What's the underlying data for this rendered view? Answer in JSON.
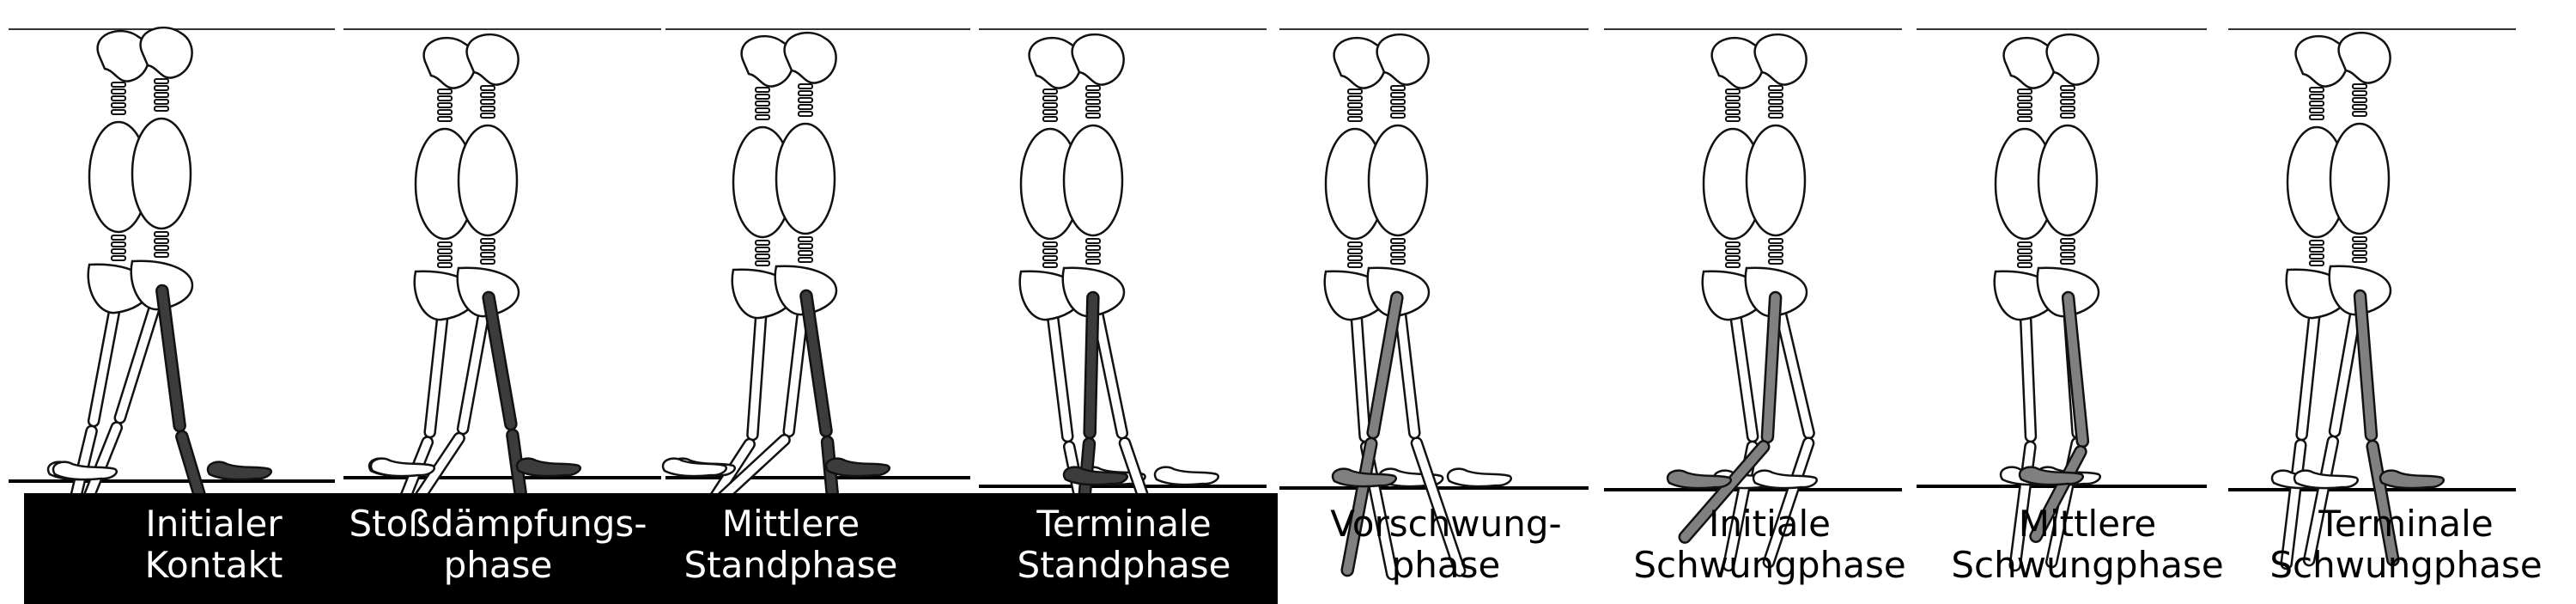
{
  "figure": {
    "stance_group_label": "",
    "phases": [
      {
        "line1": "Initialer",
        "line2": "Kontakt"
      },
      {
        "line1": "Stoßdämpfungs-",
        "line2": "phase"
      },
      {
        "line1": "Mittlere",
        "line2": "Standphase"
      },
      {
        "line1": "Terminale",
        "line2": "Standphase"
      },
      {
        "line1": "Vorschwung-",
        "line2": "phase"
      },
      {
        "line1": "Initiale",
        "line2": "Schwungphase"
      },
      {
        "line1": "Mittlere",
        "line2": "Schwungphase"
      },
      {
        "line1": "Terminale",
        "line2": "Schwungphase"
      }
    ],
    "colors": {
      "stance_bar": "#000000",
      "ref_leg_stance": "#3c3c3c",
      "ref_leg_swing": "#808080",
      "bone_outline": "#111111",
      "bone_fill": "#ffffff"
    },
    "icons": [
      "skeleton-figure-icon"
    ]
  }
}
